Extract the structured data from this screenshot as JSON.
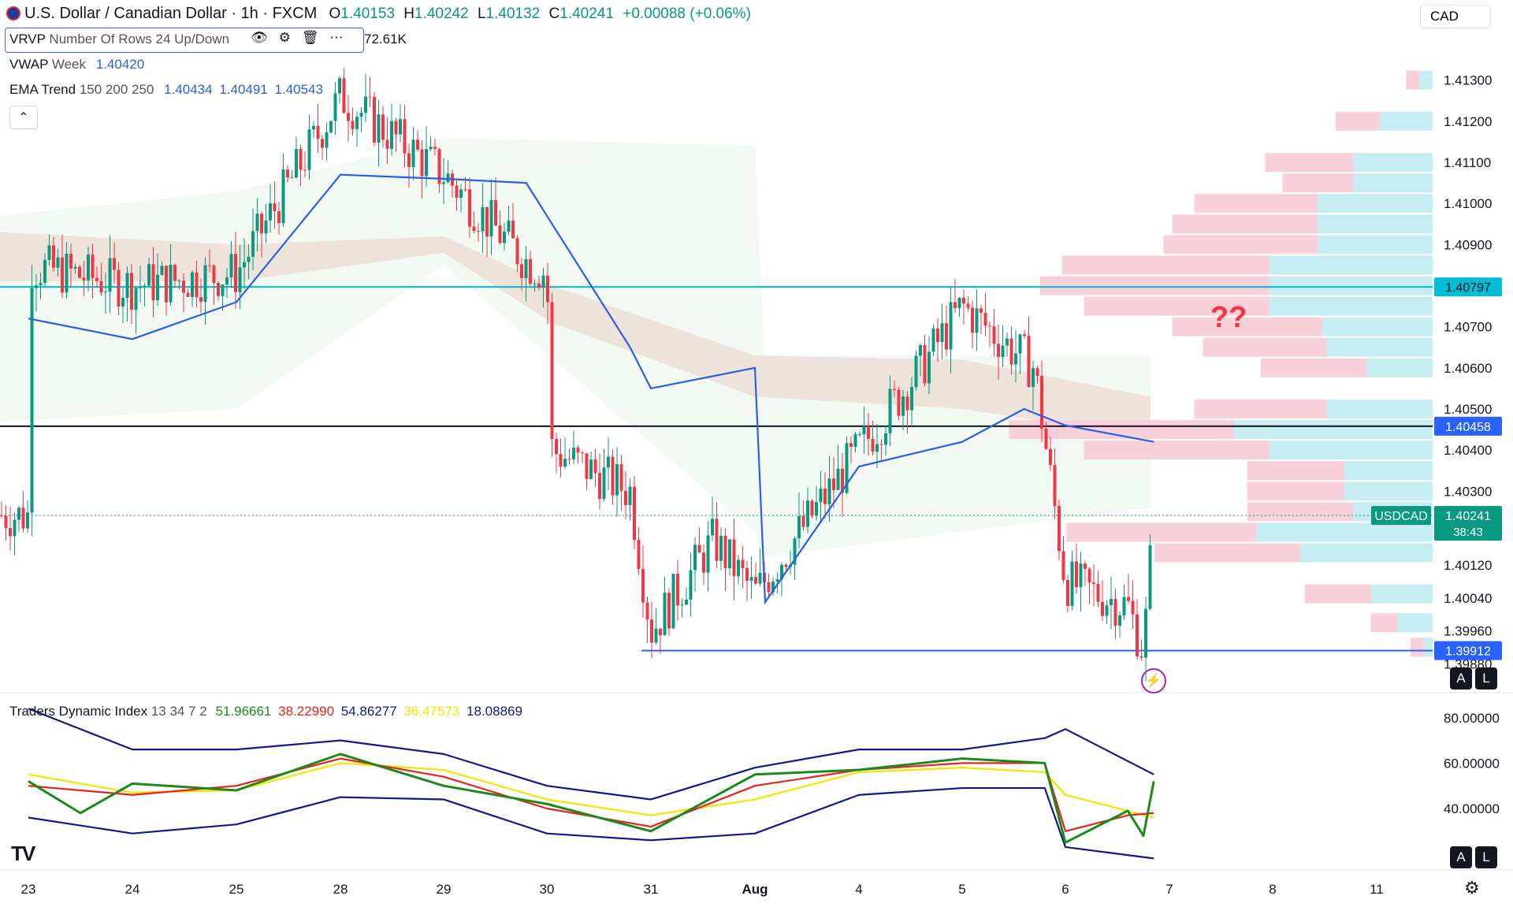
{
  "header": {
    "title": "U.S. Dollar / Canadian Dollar · 1h · FXCM",
    "o_label": "O",
    "o": "1.40153",
    "h_label": "H",
    "h": "1.40242",
    "l_label": "L",
    "l": "1.40132",
    "c_label": "C",
    "c": "1.40241",
    "change": "+0.00088 (+0.06%)",
    "currency": "CAD"
  },
  "indicators": {
    "vrvp_name": "VRVP",
    "vrvp_params": "Number Of Rows 24 Up/Down",
    "vrvp_value": "72.61K",
    "vwap_name": "VWAP",
    "vwap_params": "Week",
    "vwap_value": "1.40420",
    "ema_name": "EMA Trend",
    "ema_params": "150 200 250",
    "ema_v1": "1.40434",
    "ema_v2": "1.40491",
    "ema_v3": "1.40543",
    "tdi_name": "Traders Dynamic Index",
    "tdi_params": "13 34 7 2",
    "tdi_v1": "51.96661",
    "tdi_v2": "38.22990",
    "tdi_v3": "54.86277",
    "tdi_v4": "36.47573",
    "tdi_v5": "18.08869"
  },
  "annotation": "??",
  "price_tags": {
    "resistance": "1.40797",
    "pivot": "1.40458",
    "current_symbol": "USDCAD",
    "current": "1.40241",
    "countdown": "38:43",
    "support": "1.39912"
  },
  "colors": {
    "bull": "#089981",
    "bear": "#f23645",
    "ema_band": "#f4b6b0",
    "vwap": "#2b5ee8",
    "resistance_line": "#00bcd4",
    "support_line": "#2962ff",
    "tdi_green": "#1b8a1b",
    "tdi_red": "#e8221c",
    "tdi_yellow": "#f5e400",
    "tdi_navy": "#0d1a8c",
    "vp_up": "#c6edf2",
    "vp_down": "#f8d0da"
  },
  "buttons": {
    "collapse": "⌃",
    "auto": "A",
    "log": "L"
  },
  "logo": "TV",
  "chart_data": {
    "type": "candlestick",
    "symbol": "USDCAD",
    "timeframe": "1h",
    "y_ticks": [
      "1.41300",
      "1.41200",
      "1.41100",
      "1.41000",
      "1.40900",
      "1.40700",
      "1.40600",
      "1.40500",
      "1.40400",
      "1.40300",
      "1.40120",
      "1.40040",
      "1.39960",
      "1.39880"
    ],
    "x_ticks": [
      "23",
      "24",
      "25",
      "28",
      "29",
      "30",
      "31",
      "Aug",
      "4",
      "5",
      "6",
      "7",
      "8",
      "11"
    ],
    "ylim": [
      1.3985,
      1.4138
    ],
    "tdi_ticks": [
      "80.00000",
      "60.00000",
      "40.00000"
    ],
    "tdi_ylim": [
      15,
      90
    ],
    "levels": {
      "resistance": 1.40797,
      "pivot": 1.40458,
      "support": 1.39912,
      "current": 1.40241
    },
    "price_path": [
      [
        "23",
        1.4085
      ],
      [
        "24",
        1.408
      ],
      [
        "25",
        1.4083
      ],
      [
        "28",
        1.4126
      ],
      [
        "29",
        1.4107
      ],
      [
        "29.8",
        1.4086
      ],
      [
        "30",
        1.4083
      ],
      [
        "30.05",
        1.404
      ],
      [
        "30.8",
        1.403
      ],
      [
        "31",
        1.3996
      ],
      [
        "31.6",
        1.4018
      ],
      [
        "Aug",
        1.4005
      ],
      [
        "4",
        1.404
      ],
      [
        "4.6",
        1.406
      ],
      [
        "5",
        1.4075
      ],
      [
        "5.7",
        1.406
      ],
      [
        "6",
        1.4008
      ],
      [
        "6.6",
        1.4002
      ],
      [
        "6.75",
        1.3991
      ],
      [
        "6.85",
        1.40241
      ]
    ],
    "vwap": [
      [
        "23",
        1.4072
      ],
      [
        "24",
        1.4067
      ],
      [
        "25",
        1.4076
      ],
      [
        "28",
        1.4107
      ],
      [
        "29",
        1.4106
      ],
      [
        "29.8",
        1.4105
      ],
      [
        "30",
        1.4097
      ],
      [
        "30.8",
        1.4065
      ],
      [
        "31",
        1.4055
      ],
      [
        "Aug",
        1.406
      ],
      [
        "Aug.01",
        1.4003
      ],
      [
        "4",
        1.4036
      ],
      [
        "5",
        1.4042
      ],
      [
        "5.6",
        1.405
      ],
      [
        "6",
        1.4046
      ],
      [
        "6.85",
        1.4042
      ]
    ],
    "tdi": {
      "upper_band": [
        [
          "23",
          84
        ],
        [
          "24",
          66
        ],
        [
          "25",
          66
        ],
        [
          "28",
          70
        ],
        [
          "29",
          64
        ],
        [
          "30",
          50
        ],
        [
          "31",
          44
        ],
        [
          "Aug",
          58
        ],
        [
          "4",
          66
        ],
        [
          "5",
          66
        ],
        [
          "5.8",
          71
        ],
        [
          "6",
          75
        ],
        [
          "6.85",
          55
        ]
      ],
      "lower_band": [
        [
          "23",
          36
        ],
        [
          "24",
          29
        ],
        [
          "25",
          33
        ],
        [
          "28",
          45
        ],
        [
          "29",
          44
        ],
        [
          "30",
          29
        ],
        [
          "31",
          26
        ],
        [
          "Aug",
          29
        ],
        [
          "4",
          46
        ],
        [
          "5",
          49
        ],
        [
          "5.8",
          49
        ],
        [
          "6",
          23
        ],
        [
          "6.85",
          18
        ]
      ],
      "market_base": [
        [
          "23",
          55
        ],
        [
          "24",
          47
        ],
        [
          "25",
          48
        ],
        [
          "28",
          60
        ],
        [
          "29",
          57
        ],
        [
          "30",
          44
        ],
        [
          "31",
          37
        ],
        [
          "Aug",
          44
        ],
        [
          "4",
          56
        ],
        [
          "5",
          58
        ],
        [
          "5.8",
          56
        ],
        [
          "6",
          46
        ],
        [
          "6.85",
          36
        ]
      ],
      "rsi_price": [
        [
          "23",
          52
        ],
        [
          "23.5",
          38
        ],
        [
          "24",
          51
        ],
        [
          "25",
          48
        ],
        [
          "28",
          64
        ],
        [
          "29",
          50
        ],
        [
          "30",
          42
        ],
        [
          "31",
          30
        ],
        [
          "Aug",
          55
        ],
        [
          "4",
          57
        ],
        [
          "5",
          62
        ],
        [
          "5.8",
          60
        ],
        [
          "6",
          25
        ],
        [
          "6.6",
          39
        ],
        [
          "6.75",
          28
        ],
        [
          "6.85",
          52
        ]
      ],
      "signal": [
        [
          "23",
          50
        ],
        [
          "24",
          46
        ],
        [
          "25",
          50
        ],
        [
          "28",
          62
        ],
        [
          "29",
          54
        ],
        [
          "30",
          40
        ],
        [
          "31",
          32
        ],
        [
          "Aug",
          50
        ],
        [
          "4",
          57
        ],
        [
          "5",
          60
        ],
        [
          "5.8",
          60
        ],
        [
          "6",
          30
        ],
        [
          "6.6",
          37
        ],
        [
          "6.85",
          38
        ]
      ]
    },
    "volume_profile": {
      "rows": [
        {
          "price": 1.413,
          "up": 0.03,
          "down": 0.03
        },
        {
          "price": 1.412,
          "up": 0.12,
          "down": 0.1
        },
        {
          "price": 1.411,
          "up": 0.18,
          "down": 0.2
        },
        {
          "price": 1.4105,
          "up": 0.18,
          "down": 0.16
        },
        {
          "price": 1.41,
          "up": 0.26,
          "down": 0.28
        },
        {
          "price": 1.4095,
          "up": 0.26,
          "down": 0.33
        },
        {
          "price": 1.409,
          "up": 0.26,
          "down": 0.35
        },
        {
          "price": 1.4085,
          "up": 0.37,
          "down": 0.47
        },
        {
          "price": 1.408,
          "up": 0.37,
          "down": 0.52
        },
        {
          "price": 1.4075,
          "up": 0.37,
          "down": 0.42
        },
        {
          "price": 1.407,
          "up": 0.25,
          "down": 0.34
        },
        {
          "price": 1.4065,
          "up": 0.24,
          "down": 0.28
        },
        {
          "price": 1.406,
          "up": 0.15,
          "down": 0.24
        },
        {
          "price": 1.405,
          "up": 0.24,
          "down": 0.3
        },
        {
          "price": 1.4045,
          "up": 0.45,
          "down": 0.51
        },
        {
          "price": 1.404,
          "up": 0.37,
          "down": 0.42
        },
        {
          "price": 1.4035,
          "up": 0.2,
          "down": 0.22
        },
        {
          "price": 1.403,
          "up": 0.2,
          "down": 0.22
        },
        {
          "price": 1.4025,
          "up": 0.18,
          "down": 0.24
        },
        {
          "price": 1.402,
          "up": 0.4,
          "down": 0.43
        },
        {
          "price": 1.4015,
          "up": 0.3,
          "down": 0.33
        },
        {
          "price": 1.4005,
          "up": 0.14,
          "down": 0.15
        },
        {
          "price": 1.3998,
          "up": 0.08,
          "down": 0.06
        },
        {
          "price": 1.3992,
          "up": 0.02,
          "down": 0.03
        }
      ]
    }
  }
}
